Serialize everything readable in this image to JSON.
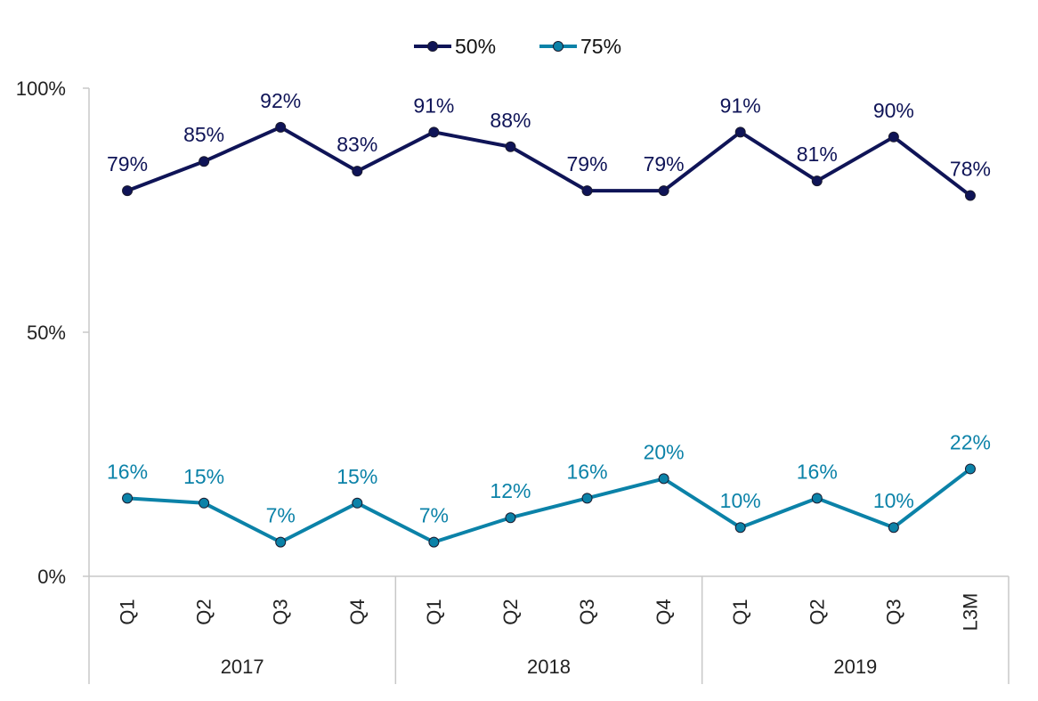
{
  "chart_data": {
    "type": "line",
    "categories": [
      "Q1",
      "Q2",
      "Q3",
      "Q4",
      "Q1",
      "Q2",
      "Q3",
      "Q4",
      "Q1",
      "Q2",
      "Q3",
      "L3M"
    ],
    "groups": [
      {
        "label": "2017",
        "count": 4
      },
      {
        "label": "2018",
        "count": 4
      },
      {
        "label": "2019",
        "count": 4
      }
    ],
    "series": [
      {
        "name": "50%",
        "color": "#0f1457",
        "values": [
          0.79,
          0.85,
          0.92,
          0.83,
          0.91,
          0.88,
          0.79,
          0.79,
          0.91,
          0.81,
          0.9,
          0.78
        ],
        "labels": [
          "79%",
          "85%",
          "92%",
          "83%",
          "91%",
          "88%",
          "79%",
          "79%",
          "91%",
          "81%",
          "90%",
          "78%"
        ]
      },
      {
        "name": "75%",
        "color": "#0b82a8",
        "values": [
          0.16,
          0.15,
          0.07,
          0.15,
          0.07,
          0.12,
          0.16,
          0.2,
          0.1,
          0.16,
          0.1,
          0.22
        ],
        "labels": [
          "16%",
          "15%",
          "7%",
          "15%",
          "7%",
          "12%",
          "16%",
          "20%",
          "10%",
          "16%",
          "10%",
          "22%"
        ]
      }
    ],
    "ylim": [
      0,
      1
    ],
    "yticks": [
      {
        "value": 0,
        "label": "0%"
      },
      {
        "value": 0.5,
        "label": "50%"
      },
      {
        "value": 1,
        "label": "100%"
      }
    ],
    "grid": false,
    "legend_position": "top-center",
    "axis_color": "#c8c8c8"
  }
}
